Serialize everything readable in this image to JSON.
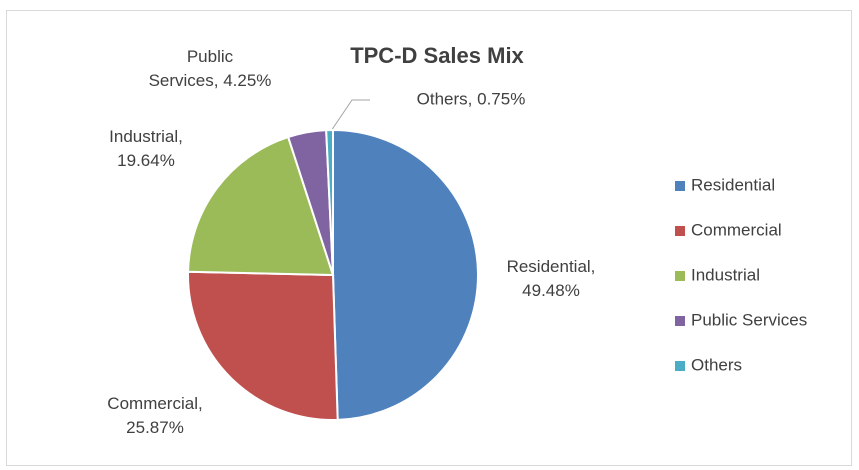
{
  "chart_data": {
    "type": "pie",
    "title": "TPC-D Sales Mix",
    "categories": [
      "Residential",
      "Commercial",
      "Industrial",
      "Public Services",
      "Others"
    ],
    "values": [
      49.48,
      25.87,
      19.64,
      4.25,
      0.75
    ],
    "value_labels": [
      "Residential, 49.48%",
      "Commercial, 25.87%",
      "Industrial, 19.64%",
      "Public Services, 4.25%",
      "Others, 0.75%"
    ],
    "colors": [
      "#4f81bd",
      "#c0504d",
      "#9bbb59",
      "#8064a2",
      "#4bacc6"
    ],
    "legend": "right"
  }
}
